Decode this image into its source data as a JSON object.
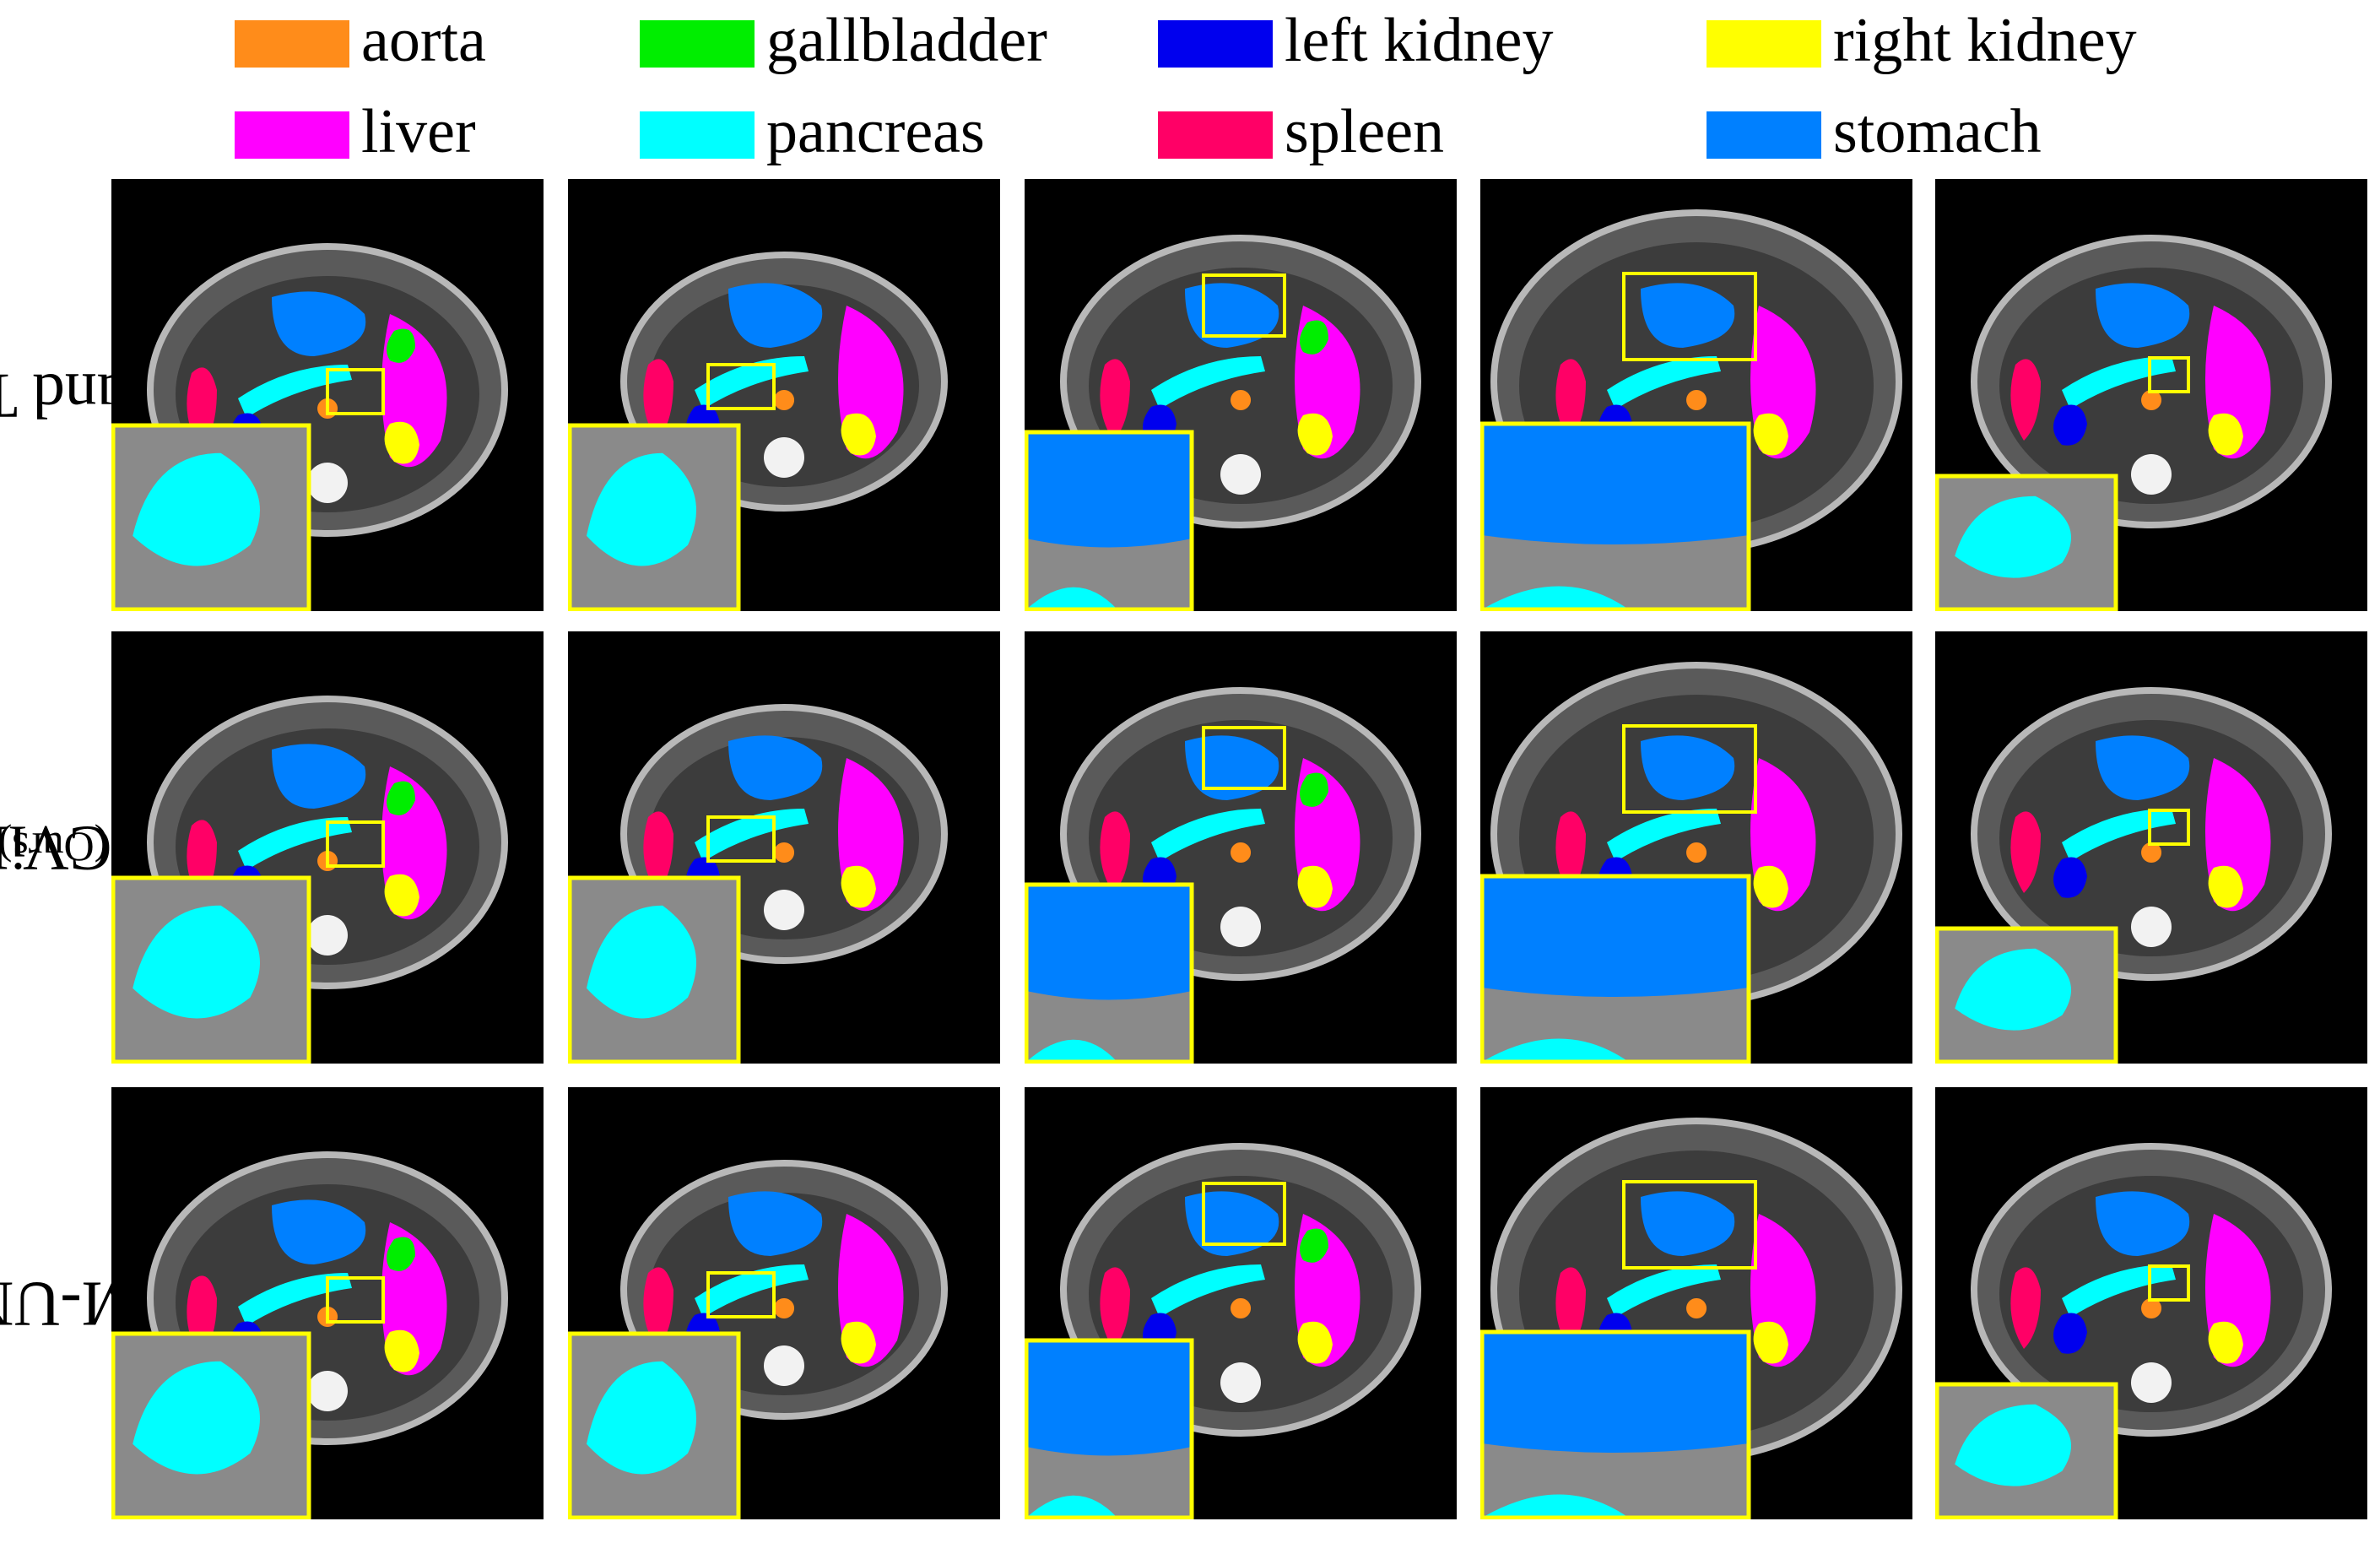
{
  "legend": {
    "items": [
      {
        "label": "aorta",
        "color": "#ff8c1a"
      },
      {
        "label": "gallbladder",
        "color": "#00ee00"
      },
      {
        "label": "left kidney",
        "color": "#0000ee"
      },
      {
        "label": "right kidney",
        "color": "#ffff00"
      },
      {
        "label": "liver",
        "color": "#ff00ff"
      },
      {
        "label": "pancreas",
        "color": "#00ffff"
      },
      {
        "label": "spleen",
        "color": "#ff0066"
      },
      {
        "label": "stomach",
        "color": "#0080ff"
      }
    ]
  },
  "rows": [
    {
      "label": "Ground Truth",
      "suffix": ""
    },
    {
      "label": "CCViM",
      "suffix": "(Ours)"
    },
    {
      "label": "VM-UNet",
      "suffix": ""
    }
  ],
  "zoom_box_color": "#ffff00"
}
